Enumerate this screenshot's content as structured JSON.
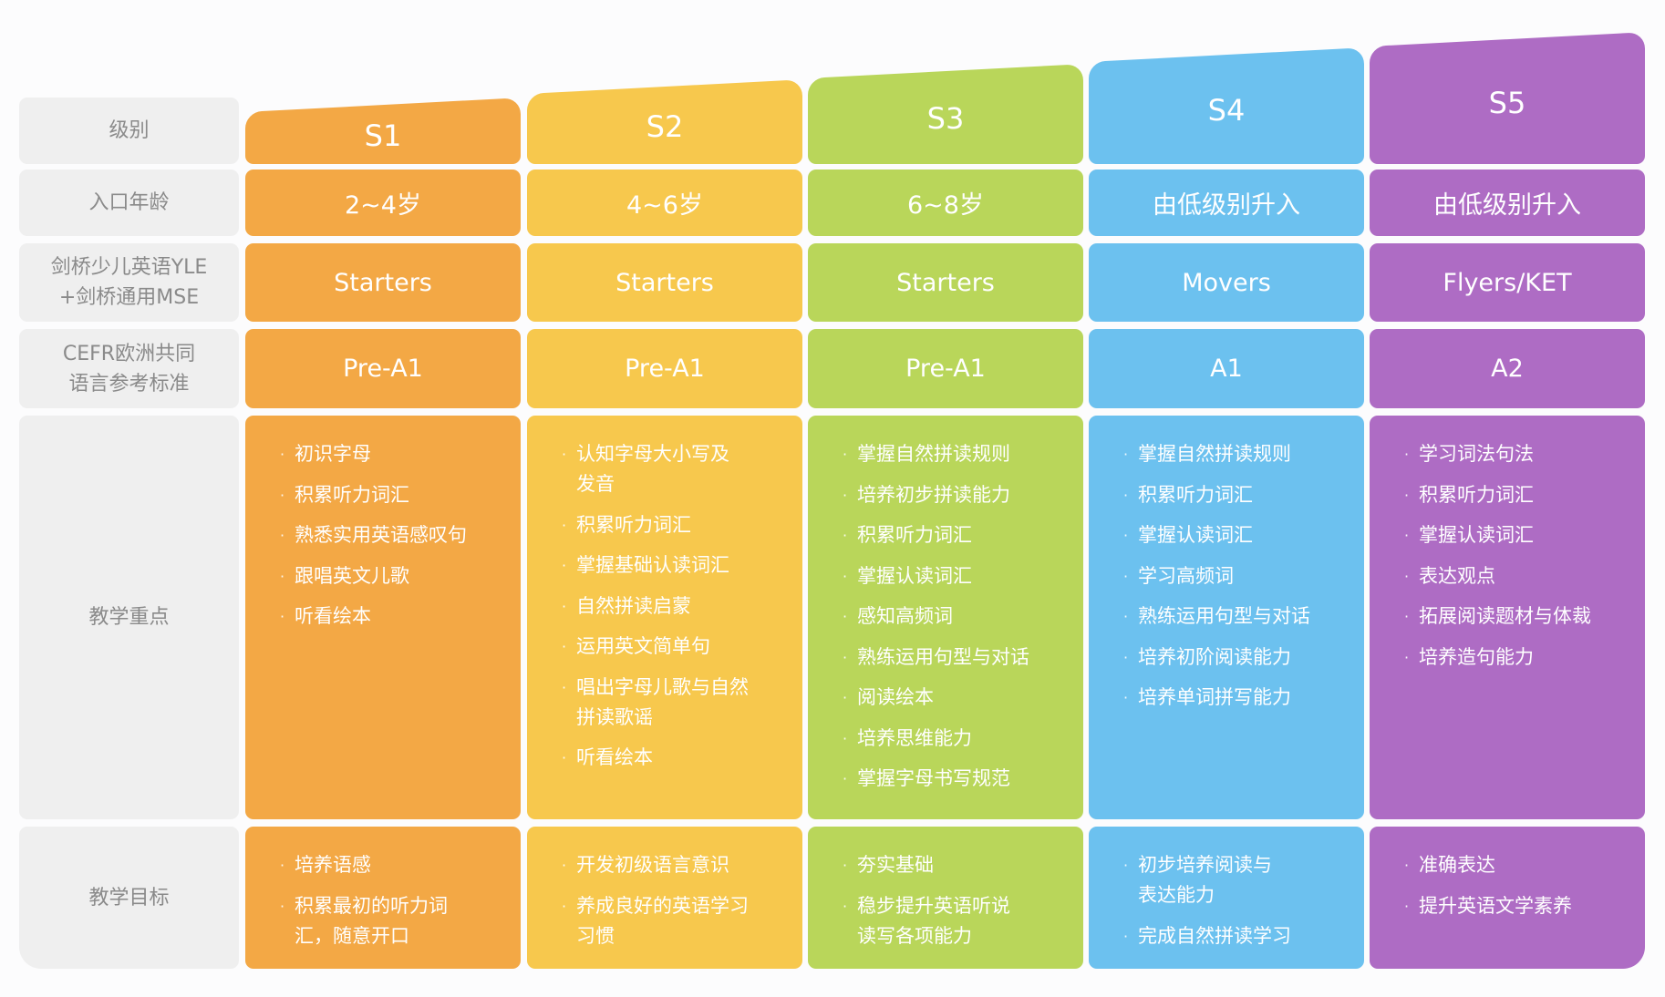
{
  "row_labels": {
    "level": "级别",
    "entry_age": "入口年龄",
    "cambridge": "剑桥少儿英语YLE\n+剑桥通用MSE",
    "cefr": "CEFR欧洲共同\n语言参考标准",
    "focus": "教学重点",
    "goals": "教学目标"
  },
  "colors": {
    "label_bg": "#efefef",
    "label_text": "#8a8a8a"
  },
  "columns": [
    {
      "level": "S1",
      "color": "#f3a845",
      "age": "2~4岁",
      "cambridge": "Starters",
      "cefr": "Pre-A1",
      "focus": [
        "初识字母",
        "积累听力词汇",
        "熟悉实用英语感叹句",
        "跟唱英文儿歌",
        "听看绘本"
      ],
      "goals": [
        "培养语感",
        "积累最初的听力词\n汇，随意开口"
      ]
    },
    {
      "level": "S2",
      "color": "#f7c84d",
      "age": "4~6岁",
      "cambridge": "Starters",
      "cefr": "Pre-A1",
      "focus": [
        "认知字母大小写及\n发音",
        "积累听力词汇",
        "掌握基础认读词汇",
        "自然拼读启蒙",
        "运用英文简单句",
        "唱出字母儿歌与自然\n拼读歌谣",
        "听看绘本"
      ],
      "goals": [
        "开发初级语言意识",
        "养成良好的英语学习\n习惯"
      ]
    },
    {
      "level": "S3",
      "color": "#b9d65a",
      "age": "6~8岁",
      "cambridge": "Starters",
      "cefr": "Pre-A1",
      "focus": [
        "掌握自然拼读规则",
        "培养初步拼读能力",
        "积累听力词汇",
        "掌握认读词汇",
        "感知高频词",
        "熟练运用句型与对话",
        "阅读绘本",
        "培养思维能力",
        "掌握字母书写规范"
      ],
      "goals": [
        "夯实基础",
        "稳步提升英语听说\n读写各项能力"
      ]
    },
    {
      "level": "S4",
      "color": "#6cc1ef",
      "age": "由低级别升入",
      "cambridge": "Movers",
      "cefr": "A1",
      "focus": [
        "掌握自然拼读规则",
        "积累听力词汇",
        "掌握认读词汇",
        "学习高频词",
        "熟练运用句型与对话",
        "培养初阶阅读能力",
        "培养单词拼写能力"
      ],
      "goals": [
        "初步培养阅读与\n表达能力",
        "完成自然拼读学习"
      ]
    },
    {
      "level": "S5",
      "color": "#ae6cc4",
      "age": "由低级别升入",
      "cambridge": "Flyers/KET",
      "cefr": "A2",
      "focus": [
        "学习词法句法",
        "积累听力词汇",
        "掌握认读词汇",
        "表达观点",
        "拓展阅读题材与体裁",
        "培养造句能力"
      ],
      "goals": [
        "准确表达",
        "提升英语文学素养"
      ]
    }
  ]
}
